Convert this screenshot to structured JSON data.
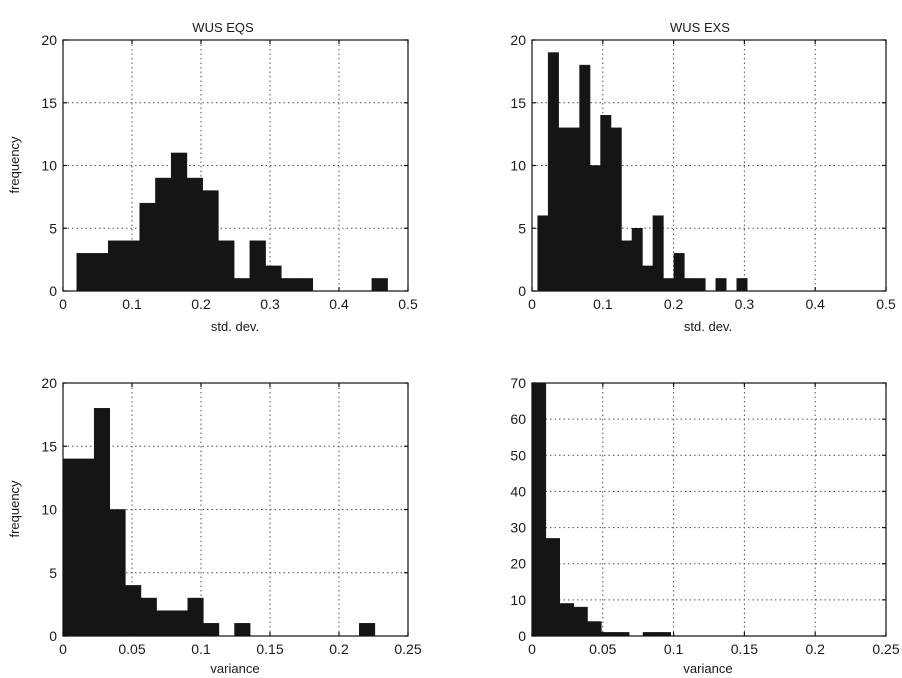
{
  "chart_data": [
    {
      "type": "bar",
      "title": "WUS EQS",
      "xlabel": "std. dev.",
      "ylabel": "frequency",
      "xlim": [
        0,
        0.5
      ],
      "ylim": [
        0,
        20
      ],
      "xticks": [
        "0",
        "0.1",
        "0.2",
        "0.3",
        "0.4",
        "0.5"
      ],
      "yticks": [
        "0",
        "5",
        "10",
        "15",
        "20"
      ],
      "grid": true,
      "bin_width": 0.0228,
      "bins": [
        {
          "x0": 0.02,
          "value": 3
        },
        {
          "x0": 0.0428,
          "value": 3
        },
        {
          "x0": 0.0656,
          "value": 4
        },
        {
          "x0": 0.0884,
          "value": 4
        },
        {
          "x0": 0.1112,
          "value": 7
        },
        {
          "x0": 0.134,
          "value": 9
        },
        {
          "x0": 0.1568,
          "value": 11
        },
        {
          "x0": 0.1796,
          "value": 9
        },
        {
          "x0": 0.2024,
          "value": 8
        },
        {
          "x0": 0.2252,
          "value": 4
        },
        {
          "x0": 0.248,
          "value": 1
        },
        {
          "x0": 0.2708,
          "value": 4
        },
        {
          "x0": 0.2936,
          "value": 2
        },
        {
          "x0": 0.3164,
          "value": 1
        },
        {
          "x0": 0.3392,
          "value": 1
        },
        {
          "x0": 0.4476,
          "value": 1
        }
      ]
    },
    {
      "type": "bar",
      "title": "WUS EXS",
      "xlabel": "std. dev.",
      "ylabel": "",
      "xlim": [
        0,
        0.5
      ],
      "ylim": [
        0,
        20
      ],
      "xticks": [
        "0",
        "0.1",
        "0.2",
        "0.3",
        "0.4",
        "0.5"
      ],
      "yticks": [
        "0",
        "5",
        "10",
        "15",
        "20"
      ],
      "grid": true,
      "bin_width": 0.0148,
      "bins": [
        {
          "x0": 0.008,
          "value": 6
        },
        {
          "x0": 0.0228,
          "value": 19
        },
        {
          "x0": 0.0376,
          "value": 13
        },
        {
          "x0": 0.0524,
          "value": 13
        },
        {
          "x0": 0.0672,
          "value": 18
        },
        {
          "x0": 0.082,
          "value": 10
        },
        {
          "x0": 0.0968,
          "value": 14
        },
        {
          "x0": 0.1116,
          "value": 13
        },
        {
          "x0": 0.1264,
          "value": 4
        },
        {
          "x0": 0.1412,
          "value": 5
        },
        {
          "x0": 0.156,
          "value": 2
        },
        {
          "x0": 0.1708,
          "value": 6
        },
        {
          "x0": 0.1856,
          "value": 1
        },
        {
          "x0": 0.2004,
          "value": 3
        },
        {
          "x0": 0.2152,
          "value": 1
        },
        {
          "x0": 0.23,
          "value": 1
        },
        {
          "x0": 0.2596,
          "value": 1
        },
        {
          "x0": 0.2892,
          "value": 1
        }
      ]
    },
    {
      "type": "bar",
      "title": "",
      "xlabel": "variance",
      "ylabel": "frequency",
      "xlim": [
        0,
        0.25
      ],
      "ylim": [
        0,
        20
      ],
      "xticks": [
        "0",
        "0.05",
        "0.1",
        "0.15",
        "0.2",
        "0.25"
      ],
      "yticks": [
        "0",
        "5",
        "10",
        "15",
        "20"
      ],
      "grid": true,
      "bin_width": 0.0113,
      "bins": [
        {
          "x0": 0.0,
          "value": 14
        },
        {
          "x0": 0.0113,
          "value": 14
        },
        {
          "x0": 0.0226,
          "value": 18
        },
        {
          "x0": 0.0339,
          "value": 10
        },
        {
          "x0": 0.0452,
          "value": 4
        },
        {
          "x0": 0.0565,
          "value": 3
        },
        {
          "x0": 0.0678,
          "value": 2
        },
        {
          "x0": 0.0791,
          "value": 2
        },
        {
          "x0": 0.0904,
          "value": 3
        },
        {
          "x0": 0.1017,
          "value": 1
        },
        {
          "x0": 0.1243,
          "value": 1
        },
        {
          "x0": 0.2147,
          "value": 1
        }
      ]
    },
    {
      "type": "bar",
      "title": "",
      "xlabel": "variance",
      "ylabel": "",
      "xlim": [
        0,
        0.25
      ],
      "ylim": [
        0,
        70
      ],
      "xticks": [
        "0",
        "0.05",
        "0.1",
        "0.15",
        "0.2",
        "0.25"
      ],
      "yticks": [
        "0",
        "10",
        "20",
        "30",
        "40",
        "50",
        "60",
        "70"
      ],
      "grid": true,
      "bin_width": 0.0098,
      "bins": [
        {
          "x0": 0.0,
          "value": 70
        },
        {
          "x0": 0.0098,
          "value": 27
        },
        {
          "x0": 0.0196,
          "value": 9
        },
        {
          "x0": 0.0294,
          "value": 8
        },
        {
          "x0": 0.0392,
          "value": 4
        },
        {
          "x0": 0.049,
          "value": 1
        },
        {
          "x0": 0.0588,
          "value": 1
        },
        {
          "x0": 0.0784,
          "value": 1
        },
        {
          "x0": 0.0882,
          "value": 1
        }
      ]
    }
  ]
}
